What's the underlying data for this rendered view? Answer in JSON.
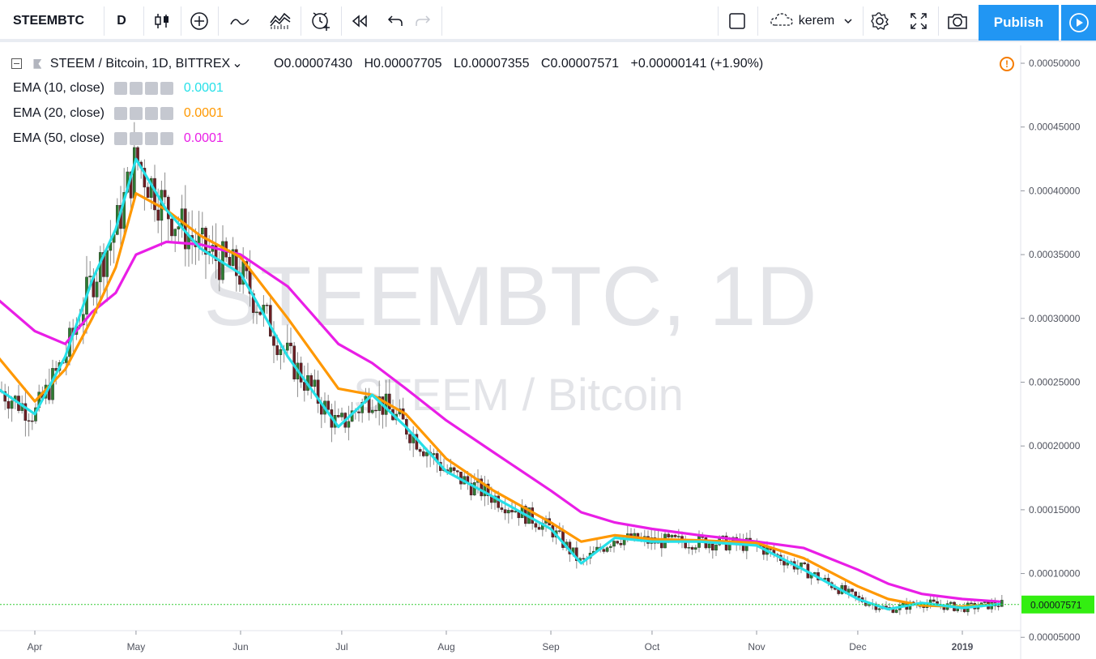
{
  "toolbar": {
    "symbol": "STEEMBTC",
    "interval": "D",
    "user": "kerem",
    "publish_label": "Publish",
    "icons": [
      "candles-icon",
      "add-indicator-icon",
      "compare-icon",
      "indicators-icon",
      "alert-icon",
      "replay-icon",
      "undo-icon",
      "redo-icon",
      "layout-icon",
      "cloud-icon",
      "settings-icon",
      "fullscreen-icon",
      "snapshot-icon",
      "play-icon"
    ]
  },
  "header": {
    "title": "STEEM / Bitcoin, 1D, BITTREX",
    "open": "O0.00007430",
    "high": "H0.00007705",
    "low": "L0.00007355",
    "close": "C0.00007571",
    "change": "+0.00000141 (+1.90%)"
  },
  "indicators": [
    {
      "label": "EMA (10, close)",
      "value": "0.0001",
      "color": "#26e0e8"
    },
    {
      "label": "EMA (20, close)",
      "value": "0.0001",
      "color": "#ff9800"
    },
    {
      "label": "EMA (50, close)",
      "value": "0.0001",
      "color": "#e91ee6"
    }
  ],
  "watermark": {
    "big": "STEEMBTC, 1D",
    "small": "STEEM / Bitcoin"
  },
  "chart_data": {
    "type": "line",
    "title": "STEEM / Bitcoin, 1D, BITTREX",
    "x_ticks": [
      "Apr",
      "May",
      "Jun",
      "Jul",
      "Aug",
      "Sep",
      "Oct",
      "Nov",
      "Dec",
      "2019"
    ],
    "y_ticks": [
      "0.00050000",
      "0.00045000",
      "0.00040000",
      "0.00035000",
      "0.00030000",
      "0.00025000",
      "0.00020000",
      "0.00015000",
      "0.00010000",
      "0.00005000"
    ],
    "ylim": [
      3.3e-05,
      0.000514
    ],
    "last_price": "0.00007571",
    "last_price_value": 7.571e-05,
    "grid": false,
    "x_dates": [
      "2018-03-21",
      "2018-04-01",
      "2018-04-10",
      "2018-04-18",
      "2018-04-25",
      "2018-05-01",
      "2018-05-10",
      "2018-05-20",
      "2018-06-01",
      "2018-06-15",
      "2018-06-30",
      "2018-07-10",
      "2018-07-20",
      "2018-08-01",
      "2018-08-15",
      "2018-09-01",
      "2018-09-10",
      "2018-09-20",
      "2018-10-01",
      "2018-10-15",
      "2018-11-01",
      "2018-11-15",
      "2018-12-01",
      "2018-12-10",
      "2018-12-20",
      "2019-01-01",
      "2019-01-12"
    ],
    "series": [
      {
        "name": "EMA (10, close)",
        "color": "#26e0e8",
        "values": [
          0.000245,
          0.000225,
          0.00027,
          0.00033,
          0.00037,
          0.000425,
          0.000385,
          0.000355,
          0.000335,
          0.00027,
          0.000215,
          0.00024,
          0.000215,
          0.00018,
          0.00016,
          0.000135,
          0.000108,
          0.000128,
          0.000125,
          0.000125,
          0.000122,
          0.000103,
          8e-05,
          7.2e-05,
          7.7e-05,
          7.3e-05,
          7.6e-05
        ]
      },
      {
        "name": "EMA (20, close)",
        "color": "#ff9800",
        "values": [
          0.00027,
          0.000235,
          0.00026,
          0.0003,
          0.00034,
          0.000398,
          0.000385,
          0.000365,
          0.000348,
          0.0003,
          0.000245,
          0.00024,
          0.000225,
          0.00019,
          0.000165,
          0.00014,
          0.000125,
          0.00013,
          0.000127,
          0.000126,
          0.000124,
          0.000112,
          9e-05,
          8e-05,
          7.5e-05,
          7.4e-05,
          7.6e-05
        ]
      },
      {
        "name": "EMA (50, close)",
        "color": "#e91ee6",
        "values": [
          0.000315,
          0.00029,
          0.00028,
          0.000305,
          0.00032,
          0.00035,
          0.00036,
          0.000358,
          0.00035,
          0.000325,
          0.00028,
          0.000265,
          0.000245,
          0.00022,
          0.000195,
          0.000165,
          0.000148,
          0.00014,
          0.000135,
          0.00013,
          0.000125,
          0.00012,
          0.000103,
          9.2e-05,
          8.4e-05,
          8e-05,
          7.8e-05
        ]
      }
    ]
  }
}
